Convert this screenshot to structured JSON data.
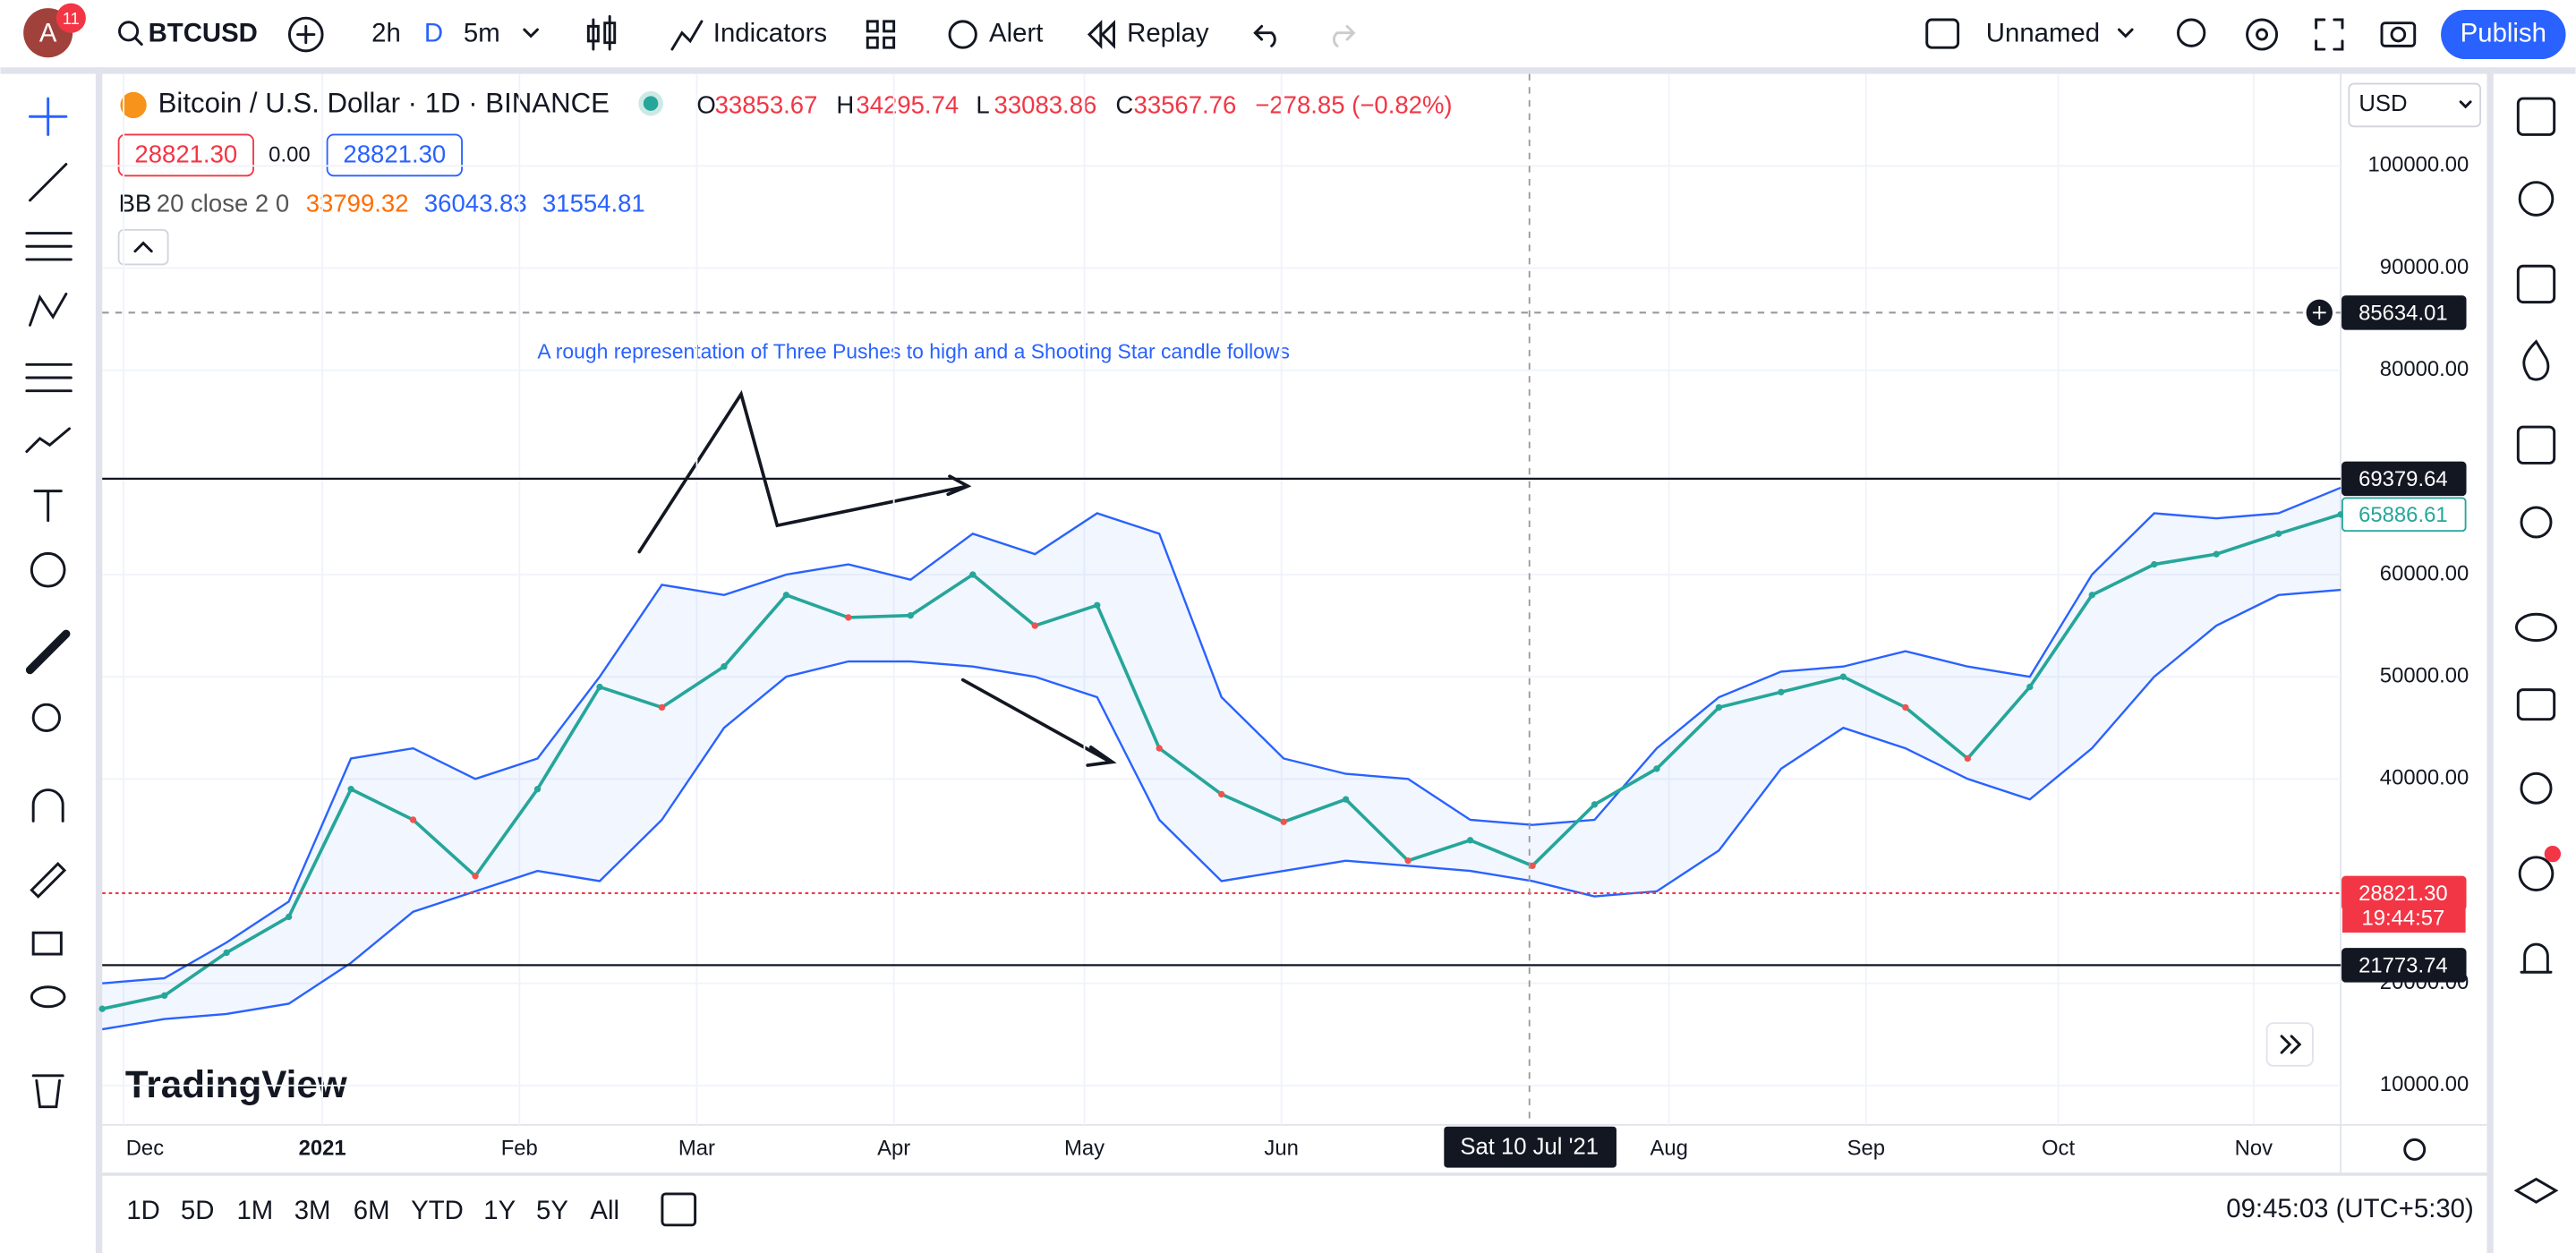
{
  "header": {
    "avatar": "A",
    "badge": "11",
    "symbol": "BTCUSD",
    "intervals": [
      "2h",
      "D",
      "5m"
    ],
    "indicators": "Indicators",
    "alert": "Alert",
    "replay": "Replay",
    "layout_name": "Unnamed",
    "publish": "Publish"
  },
  "legend": {
    "title": "Bitcoin / U.S. Dollar · 1D · BINANCE",
    "ohlc": [
      {
        "key": "O",
        "value": "33853.67"
      },
      {
        "key": "H",
        "value": "34295.74"
      },
      {
        "key": "L",
        "value": "33083.86"
      },
      {
        "key": "C",
        "value": "33567.76"
      }
    ],
    "change": "−278.85 (−0.82%)",
    "sell": "28821.30",
    "spread": "0.00",
    "buy": "28821.30",
    "bb_name": "BB",
    "bb_params": "20 close 2 0",
    "bb_values": [
      "33799.32",
      "36043.83",
      "31554.81"
    ]
  },
  "currency": "USD",
  "watermark": "TradingView",
  "chart_data": {
    "type": "line",
    "annotation": "A rough representation of Three Pushes to high and a Shooting Star candle follows",
    "close_values": [
      17500,
      18800,
      23000,
      26500,
      39000,
      36000,
      30500,
      39000,
      49000,
      47000,
      51000,
      58000,
      55800,
      56000,
      60000,
      55000,
      57000,
      43000,
      38500,
      35800,
      38000,
      32000,
      34000,
      31500,
      37500,
      41000,
      47000,
      48500,
      50000,
      47000,
      42000,
      49000,
      58000,
      61000,
      62000,
      64000,
      65886.61
    ],
    "upper_values": [
      20000,
      20500,
      24000,
      28000,
      42000,
      43000,
      40000,
      42000,
      50000,
      59000,
      58000,
      60000,
      61000,
      59500,
      64000,
      62000,
      66000,
      64000,
      48000,
      42000,
      40500,
      40000,
      36000,
      35500,
      36000,
      43000,
      48000,
      50500,
      51000,
      52500,
      51000,
      50000,
      60000,
      66000,
      65500,
      66000,
      68500
    ],
    "lower_values": [
      15500,
      16500,
      17000,
      18000,
      22000,
      27000,
      29000,
      31000,
      30000,
      36000,
      45000,
      50000,
      51500,
      51500,
      51000,
      50000,
      48000,
      36000,
      30000,
      31000,
      32000,
      31500,
      31000,
      30000,
      28500,
      29000,
      33000,
      41000,
      45000,
      43000,
      40000,
      38000,
      43000,
      50000,
      55000,
      58000,
      58500
    ],
    "ylim": [
      6140,
      109000
    ],
    "yticks": [
      {
        "value": 100000,
        "label": "100000.00"
      },
      {
        "value": 90000,
        "label": "90000.00"
      },
      {
        "value": 80000,
        "label": "80000.00"
      },
      {
        "value": 60000,
        "label": "60000.00"
      },
      {
        "value": 50000,
        "label": "50000.00"
      },
      {
        "value": 40000,
        "label": "40000.00"
      },
      {
        "value": 20000,
        "label": "20000.00"
      },
      {
        "value": 10000,
        "label": "10000.00"
      }
    ],
    "x_labels": [
      "Dec",
      "2021",
      "Feb",
      "Mar",
      "Apr",
      "May",
      "Jun",
      "Aug",
      "Sep",
      "Oct",
      "Nov"
    ],
    "crosshair_label": "Sat 10 Jul '21",
    "resistance": 69379.64,
    "support": 21773.74,
    "crosshair_price": 85634.01,
    "current_price": {
      "value": 28821.3,
      "label": "28821.30"
    },
    "countdown": "19:44:57",
    "last_price": 65886.61
  },
  "footer": {
    "ranges": [
      "1D",
      "5D",
      "1M",
      "3M",
      "6M",
      "YTD",
      "1Y",
      "5Y",
      "All"
    ],
    "clock": "09:45:03 (UTC+5:30)"
  }
}
